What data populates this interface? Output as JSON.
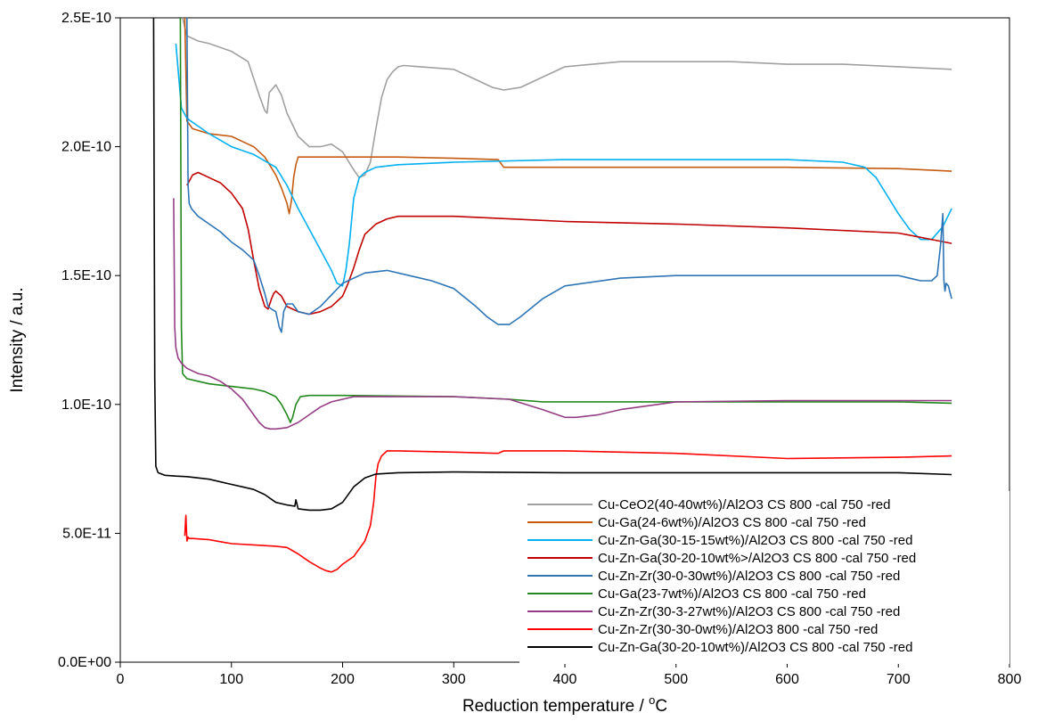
{
  "chart_data": {
    "type": "line",
    "title": "",
    "xlabel": "Reduction temperature / oC",
    "xlabel_parts": {
      "main": "Reduction temperature / ",
      "super": "o",
      "tail": "C"
    },
    "ylabel": "Intensity / a.u.",
    "xlim": [
      0,
      800
    ],
    "ylim": [
      0,
      2.5e-10
    ],
    "x_ticks": [
      0,
      100,
      200,
      300,
      400,
      500,
      600,
      700,
      800
    ],
    "x_tick_labels": [
      "0",
      "100",
      "200",
      "300",
      "400",
      "500",
      "600",
      "700",
      "800"
    ],
    "y_ticks": [
      0,
      5e-11,
      1e-10,
      1.5e-10,
      2e-10,
      2.5e-10
    ],
    "y_tick_labels": [
      "0.0E+00",
      "5.0E-11",
      "1.0E-10",
      "1.5E-10",
      "2.0E-10",
      "2.5E-10"
    ],
    "grid": false,
    "legend_position": "bottom-right",
    "series": [
      {
        "name": "Cu-CeO2(40-40wt%)/Al2O3 CS 800     -cal 750     -red",
        "color": "#a0a0a0",
        "x": [
          56,
          60,
          70,
          80,
          100,
          115,
          125,
          130,
          132,
          134,
          140,
          145,
          150,
          160,
          170,
          180,
          190,
          200,
          210,
          215,
          220,
          225,
          230,
          235,
          240,
          245,
          250,
          255,
          270,
          300,
          320,
          335,
          345,
          360,
          380,
          400,
          450,
          500,
          550,
          600,
          650,
          700,
          748
        ],
        "y": [
          2.5e-10,
          2.43e-10,
          2.41e-10,
          2.4e-10,
          2.37e-10,
          2.33e-10,
          2.2e-10,
          2.14e-10,
          2.13e-10,
          2.21e-10,
          2.24e-10,
          2.2e-10,
          2.13e-10,
          2.04e-10,
          2e-10,
          2e-10,
          2.01e-10,
          1.98e-10,
          1.91e-10,
          1.88e-10,
          1.89e-10,
          1.94e-10,
          2.07e-10,
          2.19e-10,
          2.26e-10,
          2.29e-10,
          2.31e-10,
          2.315e-10,
          2.31e-10,
          2.3e-10,
          2.26e-10,
          2.23e-10,
          2.22e-10,
          2.23e-10,
          2.27e-10,
          2.31e-10,
          2.33e-10,
          2.33e-10,
          2.33e-10,
          2.32e-10,
          2.32e-10,
          2.31e-10,
          2.3e-10
        ]
      },
      {
        "name": "Cu-Ga(24-6wt%)/Al2O3 CS 800     -cal 750     -red",
        "color": "#c55a11",
        "x": [
          58,
          60,
          65,
          80,
          100,
          110,
          120,
          130,
          140,
          145,
          150,
          152,
          154,
          156,
          158,
          160,
          170,
          200,
          250,
          300,
          340,
          345,
          400,
          500,
          600,
          700,
          748
        ],
        "y": [
          2.5e-10,
          2.1e-10,
          2.07e-10,
          2.05e-10,
          2.04e-10,
          2.02e-10,
          2e-10,
          1.96e-10,
          1.89e-10,
          1.84e-10,
          1.78e-10,
          1.74e-10,
          1.79e-10,
          1.88e-10,
          1.93e-10,
          1.96e-10,
          1.96e-10,
          1.96e-10,
          1.96e-10,
          1.955e-10,
          1.95e-10,
          1.92e-10,
          1.92e-10,
          1.92e-10,
          1.92e-10,
          1.915e-10,
          1.905e-10
        ]
      },
      {
        "name": "Cu-Zn-Ga(30-15-15wt%)/Al2O3 CS 800     -cal 750     -red",
        "color": "#00b0f0",
        "x": [
          50,
          55,
          60,
          70,
          80,
          100,
          120,
          140,
          150,
          160,
          170,
          180,
          190,
          195,
          200,
          203,
          206,
          210,
          215,
          220,
          230,
          250,
          300,
          400,
          500,
          600,
          650,
          670,
          680,
          690,
          700,
          710,
          720,
          730,
          740,
          748
        ],
        "y": [
          2.4e-10,
          2.15e-10,
          2.11e-10,
          2.08e-10,
          2.05e-10,
          2e-10,
          1.97e-10,
          1.92e-10,
          1.85e-10,
          1.76e-10,
          1.68e-10,
          1.6e-10,
          1.52e-10,
          1.47e-10,
          1.46e-10,
          1.52e-10,
          1.62e-10,
          1.8e-10,
          1.88e-10,
          1.9e-10,
          1.92e-10,
          1.93e-10,
          1.94e-10,
          1.95e-10,
          1.95e-10,
          1.95e-10,
          1.94e-10,
          1.92e-10,
          1.88e-10,
          1.81e-10,
          1.74e-10,
          1.68e-10,
          1.64e-10,
          1.64e-10,
          1.69e-10,
          1.76e-10
        ]
      },
      {
        "name": "Cu-Zn-Ga(30-20-10wt%>/Al2O3 CS 800     -cal 750     -red",
        "color": "#c00000",
        "x": [
          60,
          65,
          70,
          80,
          90,
          100,
          110,
          115,
          120,
          125,
          130,
          133,
          136,
          138,
          140,
          145,
          150,
          160,
          170,
          180,
          190,
          200,
          205,
          210,
          215,
          220,
          230,
          240,
          250,
          300,
          350,
          400,
          500,
          600,
          700,
          748
        ],
        "y": [
          1.85e-10,
          1.89e-10,
          1.9e-10,
          1.88e-10,
          1.86e-10,
          1.82e-10,
          1.76e-10,
          1.68e-10,
          1.56e-10,
          1.45e-10,
          1.38e-10,
          1.37e-10,
          1.41e-10,
          1.43e-10,
          1.44e-10,
          1.42e-10,
          1.38e-10,
          1.36e-10,
          1.35e-10,
          1.36e-10,
          1.38e-10,
          1.42e-10,
          1.47e-10,
          1.53e-10,
          1.6e-10,
          1.66e-10,
          1.7e-10,
          1.72e-10,
          1.73e-10,
          1.73e-10,
          1.72e-10,
          1.71e-10,
          1.7e-10,
          1.685e-10,
          1.665e-10,
          1.625e-10
        ]
      },
      {
        "name": "Cu-Zn-Zr(30-0-30wt%)/Al2O3 CS 800     -cal 750     -red",
        "color": "#2e75b6",
        "x": [
          60,
          61,
          62,
          64,
          70,
          80,
          90,
          100,
          110,
          120,
          125,
          130,
          133,
          136,
          140,
          143,
          145,
          147,
          150,
          155,
          160,
          170,
          180,
          200,
          220,
          240,
          260,
          280,
          300,
          320,
          330,
          340,
          345,
          350,
          360,
          380,
          400,
          450,
          500,
          550,
          600,
          650,
          700,
          720,
          730,
          735,
          738,
          740,
          741,
          742,
          743,
          745,
          748
        ],
        "y": [
          2.5e-10,
          1.85e-10,
          1.78e-10,
          1.76e-10,
          1.73e-10,
          1.7e-10,
          1.67e-10,
          1.63e-10,
          1.6e-10,
          1.56e-10,
          1.5e-10,
          1.43e-10,
          1.38e-10,
          1.37e-10,
          1.36e-10,
          1.3e-10,
          1.28e-10,
          1.36e-10,
          1.39e-10,
          1.39e-10,
          1.36e-10,
          1.35e-10,
          1.38e-10,
          1.47e-10,
          1.51e-10,
          1.52e-10,
          1.5e-10,
          1.48e-10,
          1.45e-10,
          1.38e-10,
          1.34e-10,
          1.31e-10,
          1.31e-10,
          1.31e-10,
          1.34e-10,
          1.41e-10,
          1.46e-10,
          1.49e-10,
          1.5e-10,
          1.5e-10,
          1.5e-10,
          1.5e-10,
          1.5e-10,
          1.48e-10,
          1.48e-10,
          1.5e-10,
          1.62e-10,
          1.74e-10,
          1.48e-10,
          1.44e-10,
          1.47e-10,
          1.46e-10,
          1.41e-10
        ]
      },
      {
        "name": "Cu-Ga(23-7wt%)/Al2O3 CS 800     -cal 750     -red",
        "color": "#22881d",
        "x": [
          54,
          55,
          56,
          60,
          70,
          80,
          100,
          120,
          130,
          140,
          145,
          150,
          153,
          155,
          158,
          162,
          170,
          200,
          300,
          350,
          380,
          400,
          500,
          600,
          700,
          748
        ],
        "y": [
          2.5e-10,
          1.3e-10,
          1.12e-10,
          1.1e-10,
          1.09e-10,
          1.08e-10,
          1.07e-10,
          1.06e-10,
          1.05e-10,
          1.03e-10,
          1e-10,
          9.6e-11,
          9.3e-11,
          9.5e-11,
          1e-10,
          1.03e-10,
          1.035e-10,
          1.035e-10,
          1.03e-10,
          1.02e-10,
          1.01e-10,
          1.01e-10,
          1.01e-10,
          1.01e-10,
          1.01e-10,
          1.005e-10
        ]
      },
      {
        "name": "Cu-Zn-Zr(30-3-27wt%)/Al2O3 CS 800     -cal 750     -red",
        "color": "#953d84",
        "x": [
          48,
          49,
          50,
          52,
          55,
          60,
          70,
          80,
          90,
          100,
          110,
          120,
          125,
          130,
          135,
          140,
          150,
          160,
          170,
          180,
          190,
          200,
          210,
          220,
          250,
          300,
          350,
          380,
          400,
          410,
          430,
          450,
          500,
          600,
          700,
          748
        ],
        "y": [
          1.8e-10,
          1.3e-10,
          1.22e-10,
          1.18e-10,
          1.16e-10,
          1.14e-10,
          1.12e-10,
          1.11e-10,
          1.09e-10,
          1.06e-10,
          1.02e-10,
          9.6e-11,
          9.3e-11,
          9.1e-11,
          9.05e-11,
          9.05e-11,
          9.1e-11,
          9.3e-11,
          9.6e-11,
          9.9e-11,
          1.01e-10,
          1.02e-10,
          1.03e-10,
          1.03e-10,
          1.03e-10,
          1.03e-10,
          1.02e-10,
          9.8e-11,
          9.5e-11,
          9.5e-11,
          9.6e-11,
          9.8e-11,
          1.01e-10,
          1.015e-10,
          1.015e-10,
          1.015e-10
        ]
      },
      {
        "name": "Cu-Zn-Zr(30-30-0wt%)/Al2O3 800     -cal 750     -red",
        "color": "#ff0000",
        "x": [
          58,
          59,
          60,
          61,
          62,
          65,
          80,
          100,
          120,
          140,
          150,
          160,
          170,
          180,
          185,
          190,
          195,
          200,
          210,
          220,
          225,
          228,
          230,
          232,
          235,
          240,
          250,
          300,
          340,
          345,
          400,
          500,
          600,
          700,
          748
        ],
        "y": [
          4.9e-11,
          5.7e-11,
          4.7e-11,
          4.85e-11,
          4.8e-11,
          4.8e-11,
          4.75e-11,
          4.6e-11,
          4.55e-11,
          4.5e-11,
          4.45e-11,
          4.2e-11,
          3.9e-11,
          3.65e-11,
          3.55e-11,
          3.5e-11,
          3.6e-11,
          3.8e-11,
          4.1e-11,
          4.7e-11,
          5.3e-11,
          6.2e-11,
          7.2e-11,
          7.7e-11,
          8e-11,
          8.2e-11,
          8.2e-11,
          8.15e-11,
          8.1e-11,
          8.2e-11,
          8.2e-11,
          8.1e-11,
          7.9e-11,
          7.95e-11,
          8e-11
        ]
      },
      {
        "name": "Cu-Zn-Ga(30-20-10wt%)/Al2O3 CS 800     -cal 750     -red",
        "color": "#000000",
        "x": [
          30,
          31,
          32,
          34,
          40,
          50,
          60,
          80,
          100,
          110,
          120,
          130,
          140,
          150,
          157,
          158,
          160,
          170,
          180,
          190,
          200,
          210,
          220,
          230,
          250,
          300,
          400,
          500,
          600,
          700,
          748
        ],
        "y": [
          2.5e-10,
          1.1e-10,
          7.6e-11,
          7.35e-11,
          7.25e-11,
          7.22e-11,
          7.2e-11,
          7.1e-11,
          6.9e-11,
          6.8e-11,
          6.7e-11,
          6.5e-11,
          6.2e-11,
          6.1e-11,
          6.05e-11,
          6.3e-11,
          5.95e-11,
          5.9e-11,
          5.9e-11,
          5.95e-11,
          6.2e-11,
          6.8e-11,
          7.15e-11,
          7.3e-11,
          7.35e-11,
          7.38e-11,
          7.35e-11,
          7.35e-11,
          7.35e-11,
          7.35e-11,
          7.28e-11
        ]
      }
    ]
  }
}
